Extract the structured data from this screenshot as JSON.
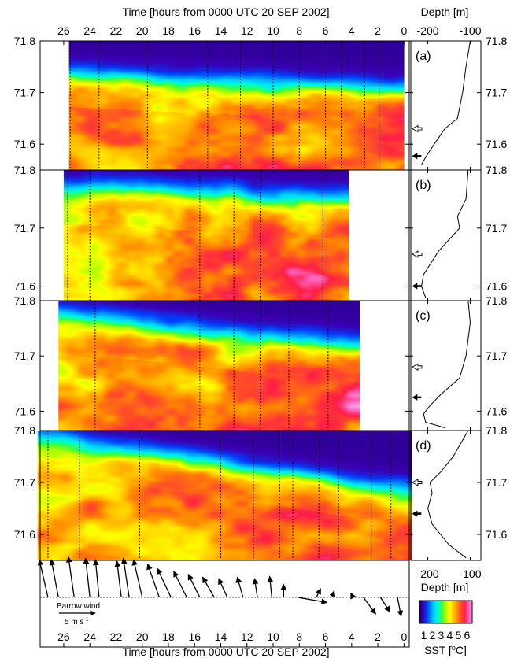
{
  "chart_data": {
    "type": "heatmap",
    "title": "",
    "top_axis": {
      "label": "Time [hours from 0000 UTC 20 SEP 2002]",
      "ticks": [
        26,
        24,
        22,
        20,
        18,
        16,
        14,
        12,
        10,
        8,
        6,
        4,
        2,
        0
      ],
      "range": [
        27.8,
        -0.4
      ],
      "reversed": true
    },
    "bottom_axis": {
      "label": "Time [hours from 0000 UTC 20 SEP 2002]",
      "ticks": [
        26,
        24,
        22,
        20,
        18,
        16,
        14,
        12,
        10,
        8,
        6,
        4,
        2,
        0
      ]
    },
    "depth_axis": {
      "label": "Depth [m]",
      "ticks": [
        -200,
        -100
      ]
    },
    "panels": [
      {
        "id": "a",
        "label": "(a)",
        "lat_ticks": [
          71.8,
          71.7,
          71.6
        ],
        "lat_range": [
          71.55,
          71.8
        ],
        "data_time_range": [
          25.6,
          0
        ],
        "front_lat_start": 71.735,
        "front_lat_end": 71.705,
        "section_hours": [
          25.5,
          23.3,
          19.6,
          15.0,
          12.5,
          10.0,
          8.0,
          6.0,
          4.8,
          3.0,
          1.9
        ],
        "depth_profile": [
          [
            -100,
            71.8
          ],
          [
            -110,
            71.75
          ],
          [
            -118,
            71.7
          ],
          [
            -130,
            71.65
          ],
          [
            -160,
            71.63
          ],
          [
            -185,
            71.6
          ],
          [
            -205,
            71.575
          ],
          [
            -215,
            71.56
          ]
        ],
        "arrow_open_lat": 71.63,
        "arrow_solid_lat": 71.577
      },
      {
        "id": "b",
        "label": "(b)",
        "lat_ticks": [
          71.8,
          71.7,
          71.6
        ],
        "lat_range": [
          71.575,
          71.8
        ],
        "data_time_range": [
          26.0,
          4.2
        ],
        "front_lat_start": 71.77,
        "front_lat_end": 71.745,
        "section_hours": [
          25.7,
          24.0,
          15.6,
          13.0,
          11.0,
          6.2
        ],
        "depth_profile": [
          [
            -105,
            71.8
          ],
          [
            -110,
            71.75
          ],
          [
            -130,
            71.72
          ],
          [
            -125,
            71.7
          ],
          [
            -150,
            71.68
          ],
          [
            -175,
            71.66
          ],
          [
            -210,
            71.62
          ],
          [
            -215,
            71.6
          ],
          [
            -205,
            71.58
          ]
        ],
        "arrow_open_lat": 71.655,
        "arrow_solid_lat": 71.6
      },
      {
        "id": "c",
        "label": "(c)",
        "lat_ticks": [
          71.8,
          71.7,
          71.6
        ],
        "lat_range": [
          71.565,
          71.8
        ],
        "data_time_range": [
          26.4,
          3.4
        ],
        "front_lat_start": 71.77,
        "front_lat_end": 71.715,
        "section_hours": [
          23.6,
          15.6,
          13.0,
          11.0,
          8.8,
          5.8
        ],
        "depth_profile": [
          [
            -105,
            71.8
          ],
          [
            -100,
            71.76
          ],
          [
            -105,
            71.73
          ],
          [
            -110,
            71.7
          ],
          [
            -125,
            71.66
          ],
          [
            -170,
            71.63
          ],
          [
            -195,
            71.61
          ],
          [
            -210,
            71.595
          ],
          [
            -205,
            71.58
          ],
          [
            -160,
            71.57
          ]
        ],
        "arrow_open_lat": 71.68,
        "arrow_solid_lat": 71.625
      },
      {
        "id": "d",
        "label": "(d)",
        "lat_ticks": [
          71.8,
          71.7,
          71.6
        ],
        "lat_range": [
          71.55,
          71.8
        ],
        "data_time_range": [
          28.0,
          -0.6
        ],
        "front_lat_start": 71.785,
        "front_lat_end": 71.68,
        "section_hours": [
          27.2,
          24.8,
          20.2,
          14.0,
          11.5,
          9.5,
          8.5,
          6.5,
          5.0,
          2.5,
          1.0
        ],
        "depth_profile": [
          [
            -105,
            71.8
          ],
          [
            -140,
            71.75
          ],
          [
            -170,
            71.72
          ],
          [
            -195,
            71.7
          ],
          [
            -190,
            71.68
          ],
          [
            -200,
            71.65
          ],
          [
            -190,
            71.62
          ],
          [
            -150,
            71.58
          ],
          [
            -110,
            71.555
          ]
        ],
        "arrow_open_lat": 71.7,
        "arrow_solid_lat": 71.64
      }
    ],
    "wind": {
      "label": "Barrow wind",
      "scale_label": "5 m s",
      "scale_exponent": "-1",
      "vectors": [
        [
          27.2,
          -1.2,
          5.2
        ],
        [
          26.4,
          -1.0,
          5.2
        ],
        [
          25.2,
          -0.8,
          5.6
        ],
        [
          24.0,
          -0.6,
          5.4
        ],
        [
          23.3,
          -0.5,
          5.2
        ],
        [
          21.6,
          -0.6,
          5.0
        ],
        [
          21.0,
          -0.8,
          5.4
        ],
        [
          20.0,
          -1.2,
          5.2
        ],
        [
          18.7,
          -1.6,
          4.6
        ],
        [
          17.8,
          -1.9,
          4.0
        ],
        [
          16.6,
          -1.8,
          3.6
        ],
        [
          15.6,
          -1.6,
          3.2
        ],
        [
          14.5,
          -1.6,
          2.8
        ],
        [
          13.5,
          -1.2,
          2.6
        ],
        [
          12.3,
          -0.8,
          2.8
        ],
        [
          11.2,
          -0.4,
          2.6
        ],
        [
          10.1,
          -0.3,
          2.9
        ],
        [
          9.2,
          0.0,
          1.8
        ],
        [
          8.1,
          4.0,
          -0.7
        ],
        [
          6.7,
          0.6,
          1.2
        ],
        [
          5.5,
          0.3,
          0.9
        ],
        [
          3.9,
          -0.3,
          0.6
        ],
        [
          3.1,
          1.7,
          -2.3
        ],
        [
          1.8,
          1.3,
          -2.0
        ],
        [
          0.5,
          0.5,
          -2.6
        ]
      ]
    },
    "colorbar": {
      "label": "SST [",
      "unit_symbol": "o",
      "unit_suffix": "C]",
      "ticks": [
        1,
        2,
        3,
        4,
        5,
        6
      ],
      "range": [
        0.5,
        6.6
      ],
      "colors": [
        "#1a0063",
        "#3a00b2",
        "#0040ff",
        "#0094ff",
        "#00d9ff",
        "#00ffc8",
        "#3cff3c",
        "#b4ff00",
        "#ffff00",
        "#ffc800",
        "#ff8c00",
        "#ff4a2a",
        "#ff1e46",
        "#ff5ab4",
        "#ffa0e6"
      ]
    }
  }
}
